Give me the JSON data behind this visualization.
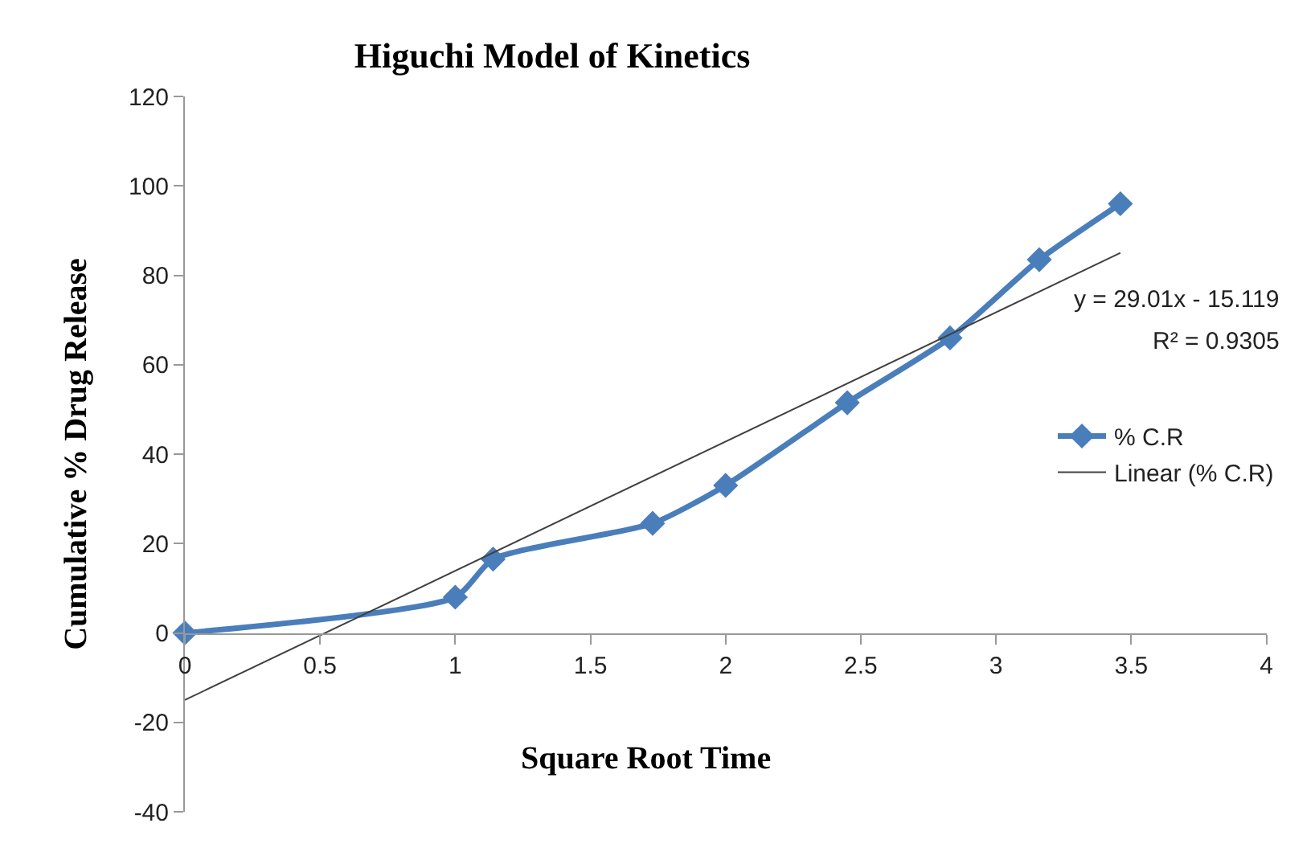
{
  "chart_data": {
    "type": "line",
    "title": "Higuchi Model of Kinetics",
    "xlabel": "Square Root Time",
    "ylabel": "Cumulative % Drug Release",
    "series": [
      {
        "name": "% C.R",
        "color": "#4a7ebb",
        "x": [
          0,
          1,
          1.14,
          1.73,
          2,
          2.45,
          2.83,
          3.16,
          3.46
        ],
        "values": [
          0,
          8,
          16.5,
          24.5,
          33,
          51.5,
          66,
          83.5,
          96
        ],
        "marker": "diamond",
        "line_style": "solid"
      },
      {
        "name": "Linear (% C.R)",
        "color": "#404040",
        "type": "line",
        "x": [
          0,
          3.46
        ],
        "values": [
          -15,
          85
        ],
        "marker": "none",
        "line_style": "solid"
      }
    ],
    "annotations": [
      "y = 29.01x - 15.119",
      "R² = 0.9305"
    ],
    "xlim": [
      0,
      4
    ],
    "xticks": [
      0,
      0.5,
      1,
      1.5,
      2,
      2.5,
      3,
      3.5,
      4
    ],
    "ylim": [
      -40,
      120
    ],
    "yticks": [
      -40,
      -20,
      0,
      20,
      40,
      60,
      80,
      100,
      120
    ],
    "legend": "right"
  }
}
